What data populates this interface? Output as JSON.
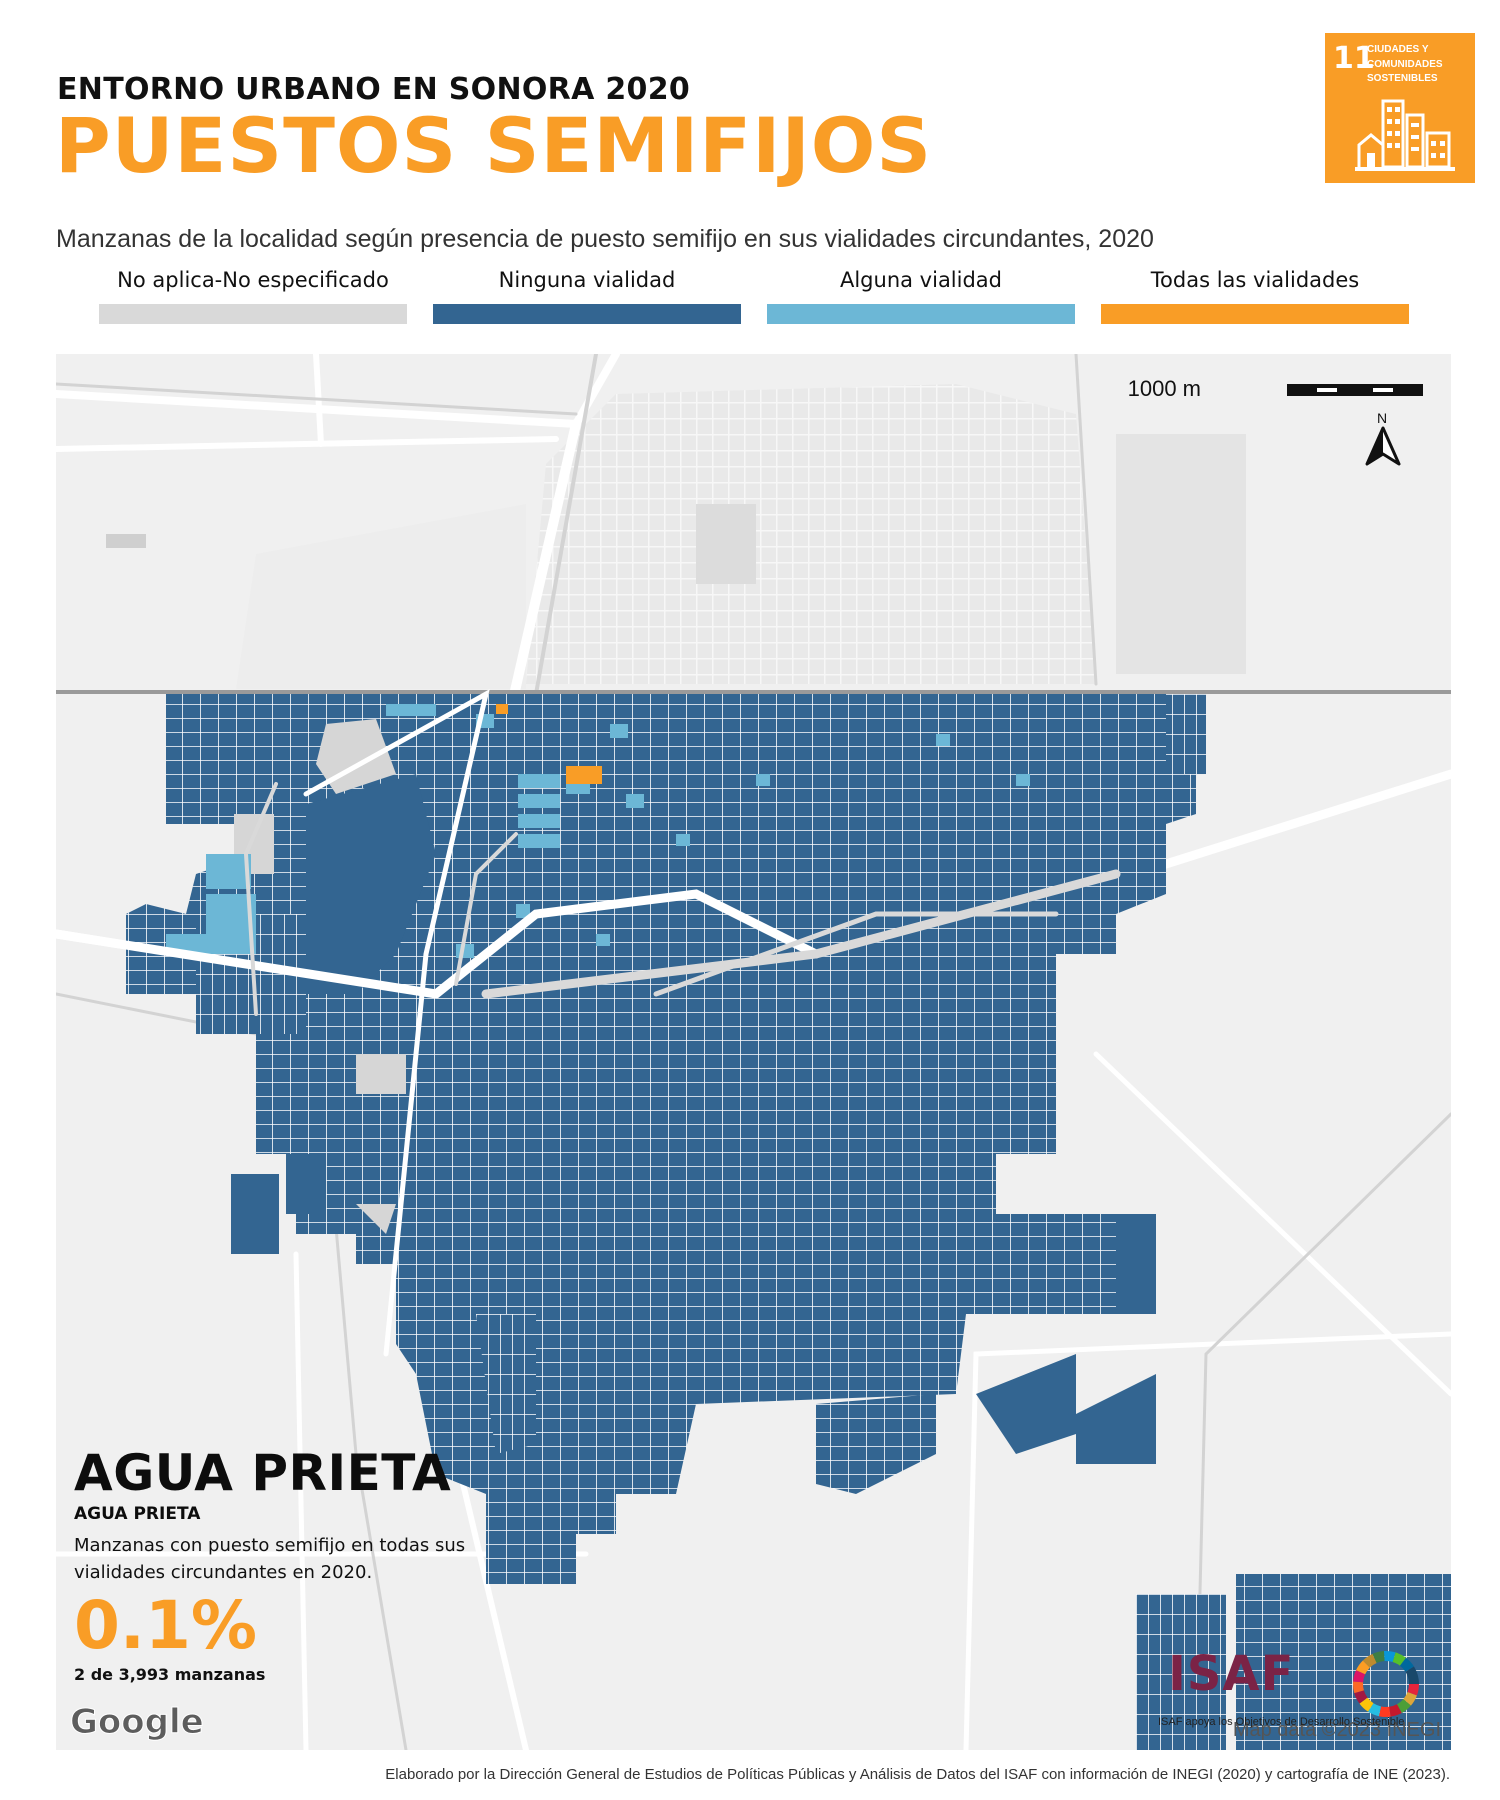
{
  "header": {
    "kicker": "ENTORNO URBANO EN SONORA 2020",
    "title": "PUESTOS SEMIFIJOS",
    "subtitle": "Manzanas de la localidad según presencia de puesto semifijo en sus vialidades circundantes, 2020"
  },
  "sdg_badge": {
    "number": "11",
    "text": "CIUDADES Y COMUNIDADES SOSTENIBLES",
    "color": "#f99d26",
    "icon": "buildings-icon"
  },
  "legend": [
    {
      "label": "No aplica-No especificado",
      "color": "#d9d9d9"
    },
    {
      "label": "Ninguna vialidad",
      "color": "#336591"
    },
    {
      "label": "Alguna vialidad",
      "color": "#6cb7d6"
    },
    {
      "label": "Todas las vialidades",
      "color": "#f99d26"
    }
  ],
  "map": {
    "scale_label": "1000 m",
    "north_label": "N",
    "attribution": "Map data ©2023 INEGI",
    "google": "Google"
  },
  "summary": {
    "place": "AGUA PRIETA",
    "place_sub": "AGUA PRIETA",
    "description": "Manzanas con puesto semifijo en todas sus vialidades circundantes en 2020.",
    "percent": "0.1%",
    "count": "2 de 3,993 manzanas"
  },
  "isaf": {
    "logo": "ISAF",
    "tagline": "ISAF apoya los Objetivos de Desarrollo Sostenible"
  },
  "credit": "Elaborado por la Dirección General de Estudios de Políticas Públicas y Análisis de Datos del ISAF con información de INEGI (2020) y cartografía de INE (2023)."
}
